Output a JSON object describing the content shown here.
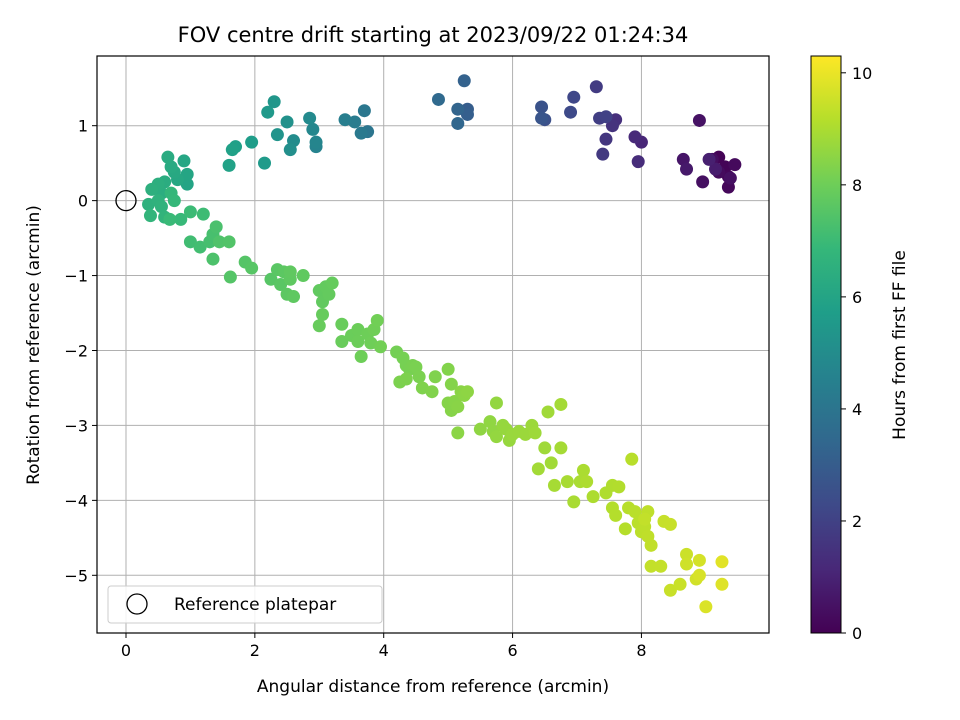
{
  "chart_data": {
    "type": "scatter",
    "title": "FOV centre drift starting at 2023/09/22 01:24:34",
    "xlabel": "Angular distance from reference (arcmin)",
    "ylabel": "Rotation from reference (arcmin)",
    "xlim": [
      -0.45,
      9.98
    ],
    "ylim": [
      -5.77,
      1.93
    ],
    "xticks": [
      0,
      2,
      4,
      6,
      8
    ],
    "yticks": [
      1,
      0,
      -1,
      -2,
      -3,
      -4,
      -5
    ],
    "grid": true,
    "legend": {
      "placement": "lower-left",
      "entries": [
        "Reference platepar"
      ]
    },
    "reference_point": {
      "x": 0,
      "y": 0,
      "label": "Reference platepar"
    },
    "colorbar": {
      "label": "Hours from first FF file",
      "range": [
        0,
        10.3
      ],
      "ticks": [
        0,
        2,
        4,
        6,
        8,
        10
      ],
      "colormap": "viridis"
    },
    "series": [
      {
        "columns": [
          "x",
          "y",
          "hours"
        ],
        "points": [
          [
            9.2,
            0.58,
            0.05
          ],
          [
            9.3,
            0.45,
            0.1
          ],
          [
            9.35,
            0.32,
            0.15
          ],
          [
            9.35,
            0.18,
            0.2
          ],
          [
            9.45,
            0.48,
            0.25
          ],
          [
            9.2,
            0.38,
            0.3
          ],
          [
            9.1,
            0.55,
            0.35
          ],
          [
            8.95,
            0.25,
            0.4
          ],
          [
            9.38,
            0.3,
            0.45
          ],
          [
            8.9,
            1.07,
            0.5
          ],
          [
            8.65,
            0.55,
            0.6
          ],
          [
            8.7,
            0.42,
            0.7
          ],
          [
            9.15,
            0.42,
            0.8
          ],
          [
            9.05,
            0.55,
            0.9
          ],
          [
            8.0,
            0.78,
            1.1
          ],
          [
            7.9,
            0.85,
            1.2
          ],
          [
            7.95,
            0.52,
            1.3
          ],
          [
            7.6,
            1.08,
            1.4
          ],
          [
            7.55,
            1.0,
            1.5
          ],
          [
            7.45,
            0.82,
            1.6
          ],
          [
            7.4,
            0.62,
            1.7
          ],
          [
            7.3,
            1.52,
            1.8
          ],
          [
            7.35,
            1.1,
            1.9
          ],
          [
            7.45,
            1.12,
            2.0
          ],
          [
            6.95,
            1.38,
            2.2
          ],
          [
            6.9,
            1.18,
            2.3
          ],
          [
            6.5,
            1.08,
            2.5
          ],
          [
            6.45,
            1.25,
            2.6
          ],
          [
            6.45,
            1.1,
            2.7
          ],
          [
            5.3,
            1.22,
            3.0
          ],
          [
            5.3,
            1.15,
            3.1
          ],
          [
            5.25,
            1.6,
            3.2
          ],
          [
            5.15,
            1.22,
            3.3
          ],
          [
            5.15,
            1.03,
            3.4
          ],
          [
            4.85,
            1.35,
            3.5
          ],
          [
            3.75,
            0.92,
            4.0
          ],
          [
            3.7,
            1.2,
            4.1
          ],
          [
            3.65,
            0.9,
            4.2
          ],
          [
            3.55,
            1.05,
            4.3
          ],
          [
            3.4,
            1.08,
            4.4
          ],
          [
            2.95,
            0.72,
            4.6
          ],
          [
            2.95,
            0.78,
            4.7
          ],
          [
            2.9,
            0.95,
            4.8
          ],
          [
            2.85,
            1.1,
            4.9
          ],
          [
            2.6,
            0.8,
            5.0
          ],
          [
            2.55,
            0.68,
            5.1
          ],
          [
            2.5,
            1.05,
            5.2
          ],
          [
            2.35,
            0.88,
            5.3
          ],
          [
            2.3,
            1.32,
            5.4
          ],
          [
            2.2,
            1.18,
            5.5
          ],
          [
            2.15,
            0.5,
            5.6
          ],
          [
            1.95,
            0.78,
            5.7
          ],
          [
            1.7,
            0.72,
            5.8
          ],
          [
            1.65,
            0.68,
            5.85
          ],
          [
            1.6,
            0.47,
            5.9
          ],
          [
            0.95,
            0.22,
            6.0
          ],
          [
            0.95,
            0.35,
            6.05
          ],
          [
            0.9,
            0.53,
            6.1
          ],
          [
            0.8,
            0.28,
            6.15
          ],
          [
            0.75,
            0.38,
            6.2
          ],
          [
            0.7,
            0.45,
            6.25
          ],
          [
            0.65,
            0.58,
            6.3
          ],
          [
            0.6,
            0.25,
            6.35
          ],
          [
            0.55,
            0.1,
            6.4
          ],
          [
            0.5,
            0.22,
            6.45
          ],
          [
            0.4,
            0.15,
            6.5
          ],
          [
            0.35,
            -0.05,
            6.55
          ],
          [
            0.5,
            0.0,
            6.6
          ],
          [
            0.55,
            -0.08,
            6.65
          ],
          [
            0.6,
            -0.22,
            6.7
          ],
          [
            0.38,
            -0.2,
            6.75
          ],
          [
            0.7,
            0.1,
            6.8
          ],
          [
            0.75,
            0.0,
            6.85
          ],
          [
            0.85,
            -0.25,
            6.9
          ],
          [
            0.68,
            -0.25,
            6.95
          ],
          [
            1.0,
            -0.15,
            7.0
          ],
          [
            1.2,
            -0.18,
            7.05
          ],
          [
            1.0,
            -0.55,
            7.1
          ],
          [
            1.15,
            -0.62,
            7.15
          ],
          [
            1.3,
            -0.55,
            7.2
          ],
          [
            1.35,
            -0.45,
            7.25
          ],
          [
            1.4,
            -0.35,
            7.3
          ],
          [
            1.35,
            -0.78,
            7.35
          ],
          [
            1.45,
            -0.55,
            7.4
          ],
          [
            1.6,
            -0.55,
            7.45
          ],
          [
            1.62,
            -1.02,
            7.5
          ],
          [
            1.85,
            -0.82,
            7.5
          ],
          [
            1.95,
            -0.9,
            7.55
          ],
          [
            2.25,
            -1.05,
            7.55
          ],
          [
            2.35,
            -0.92,
            7.6
          ],
          [
            2.4,
            -1.12,
            7.6
          ],
          [
            2.45,
            -0.95,
            7.65
          ],
          [
            2.5,
            -1.25,
            7.65
          ],
          [
            2.55,
            -1.05,
            7.7
          ],
          [
            2.6,
            -1.28,
            7.7
          ],
          [
            2.55,
            -0.95,
            7.72
          ],
          [
            2.75,
            -1.0,
            7.74
          ],
          [
            3.0,
            -1.2,
            7.76
          ],
          [
            3.05,
            -1.35,
            7.78
          ],
          [
            3.1,
            -1.15,
            7.8
          ],
          [
            3.15,
            -1.25,
            7.82
          ],
          [
            3.2,
            -1.1,
            7.84
          ],
          [
            3.05,
            -1.52,
            7.86
          ],
          [
            3.0,
            -1.67,
            7.88
          ],
          [
            3.35,
            -1.65,
            7.9
          ],
          [
            3.35,
            -1.88,
            7.92
          ],
          [
            3.5,
            -1.8,
            7.94
          ],
          [
            3.6,
            -1.72,
            7.96
          ],
          [
            3.6,
            -1.88,
            7.98
          ],
          [
            3.65,
            -2.08,
            8.0
          ],
          [
            3.75,
            -1.78,
            8.0
          ],
          [
            3.8,
            -1.9,
            8.02
          ],
          [
            3.85,
            -1.72,
            8.04
          ],
          [
            3.9,
            -1.6,
            8.06
          ],
          [
            3.95,
            -1.95,
            8.08
          ],
          [
            4.2,
            -2.02,
            8.1
          ],
          [
            4.3,
            -2.1,
            8.12
          ],
          [
            4.35,
            -2.2,
            8.14
          ],
          [
            4.4,
            -2.25,
            8.16
          ],
          [
            4.45,
            -2.2,
            8.18
          ],
          [
            4.5,
            -2.22,
            8.2
          ],
          [
            4.55,
            -2.35,
            8.22
          ],
          [
            4.25,
            -2.42,
            8.24
          ],
          [
            4.35,
            -2.38,
            8.26
          ],
          [
            4.6,
            -2.5,
            8.28
          ],
          [
            4.8,
            -2.35,
            8.3
          ],
          [
            4.75,
            -2.55,
            8.32
          ],
          [
            5.0,
            -2.25,
            8.34
          ],
          [
            5.05,
            -2.45,
            8.36
          ],
          [
            5.0,
            -2.7,
            8.38
          ],
          [
            5.05,
            -2.8,
            8.4
          ],
          [
            5.1,
            -2.68,
            8.42
          ],
          [
            5.15,
            -2.75,
            8.44
          ],
          [
            5.2,
            -2.55,
            8.46
          ],
          [
            5.15,
            -3.1,
            8.48
          ],
          [
            5.25,
            -2.6,
            8.5
          ],
          [
            5.3,
            -2.55,
            8.52
          ],
          [
            5.5,
            -3.05,
            8.54
          ],
          [
            5.65,
            -2.95,
            8.56
          ],
          [
            5.7,
            -3.08,
            8.58
          ],
          [
            5.75,
            -2.7,
            8.6
          ],
          [
            5.75,
            -3.15,
            8.62
          ],
          [
            5.85,
            -3.0,
            8.64
          ],
          [
            5.9,
            -3.05,
            8.66
          ],
          [
            5.95,
            -3.2,
            8.68
          ],
          [
            6.0,
            -3.12,
            8.7
          ],
          [
            6.1,
            -3.08,
            8.72
          ],
          [
            6.2,
            -3.12,
            8.74
          ],
          [
            6.3,
            -3.0,
            8.76
          ],
          [
            6.35,
            -3.1,
            8.78
          ],
          [
            6.5,
            -3.3,
            8.8
          ],
          [
            6.55,
            -2.82,
            8.82
          ],
          [
            6.6,
            -3.5,
            8.84
          ],
          [
            6.4,
            -3.58,
            8.86
          ],
          [
            6.75,
            -2.72,
            8.88
          ],
          [
            6.75,
            -3.3,
            8.9
          ],
          [
            6.65,
            -3.8,
            8.92
          ],
          [
            6.85,
            -3.75,
            8.94
          ],
          [
            6.95,
            -4.02,
            8.96
          ],
          [
            7.05,
            -3.75,
            8.98
          ],
          [
            7.1,
            -3.6,
            9.0
          ],
          [
            7.25,
            -3.95,
            9.02
          ],
          [
            7.15,
            -3.75,
            9.04
          ],
          [
            7.45,
            -3.9,
            9.06
          ],
          [
            7.55,
            -3.8,
            9.08
          ],
          [
            7.65,
            -3.82,
            9.1
          ],
          [
            7.55,
            -4.1,
            9.12
          ],
          [
            7.6,
            -4.2,
            9.14
          ],
          [
            7.75,
            -4.38,
            9.16
          ],
          [
            7.8,
            -4.1,
            9.18
          ],
          [
            7.85,
            -3.45,
            9.2
          ],
          [
            7.9,
            -4.15,
            9.22
          ],
          [
            7.95,
            -4.3,
            9.24
          ],
          [
            8.0,
            -4.42,
            9.26
          ],
          [
            8.05,
            -4.35,
            9.28
          ],
          [
            8.1,
            -4.15,
            9.3
          ],
          [
            8.1,
            -4.48,
            9.32
          ],
          [
            8.15,
            -4.6,
            9.34
          ],
          [
            8.05,
            -4.25,
            9.36
          ],
          [
            8.15,
            -4.88,
            9.38
          ],
          [
            8.3,
            -4.88,
            9.4
          ],
          [
            8.35,
            -4.28,
            9.42
          ],
          [
            8.45,
            -4.32,
            9.44
          ],
          [
            8.45,
            -5.2,
            9.46
          ],
          [
            8.6,
            -5.12,
            9.48
          ],
          [
            8.7,
            -4.72,
            9.5
          ],
          [
            8.7,
            -4.85,
            9.55
          ],
          [
            8.85,
            -5.05,
            9.6
          ],
          [
            8.9,
            -4.8,
            9.65
          ],
          [
            8.9,
            -5.0,
            9.7
          ],
          [
            9.0,
            -5.42,
            9.75
          ],
          [
            9.25,
            -5.12,
            9.8
          ],
          [
            9.25,
            -4.82,
            9.85
          ]
        ]
      }
    ]
  }
}
